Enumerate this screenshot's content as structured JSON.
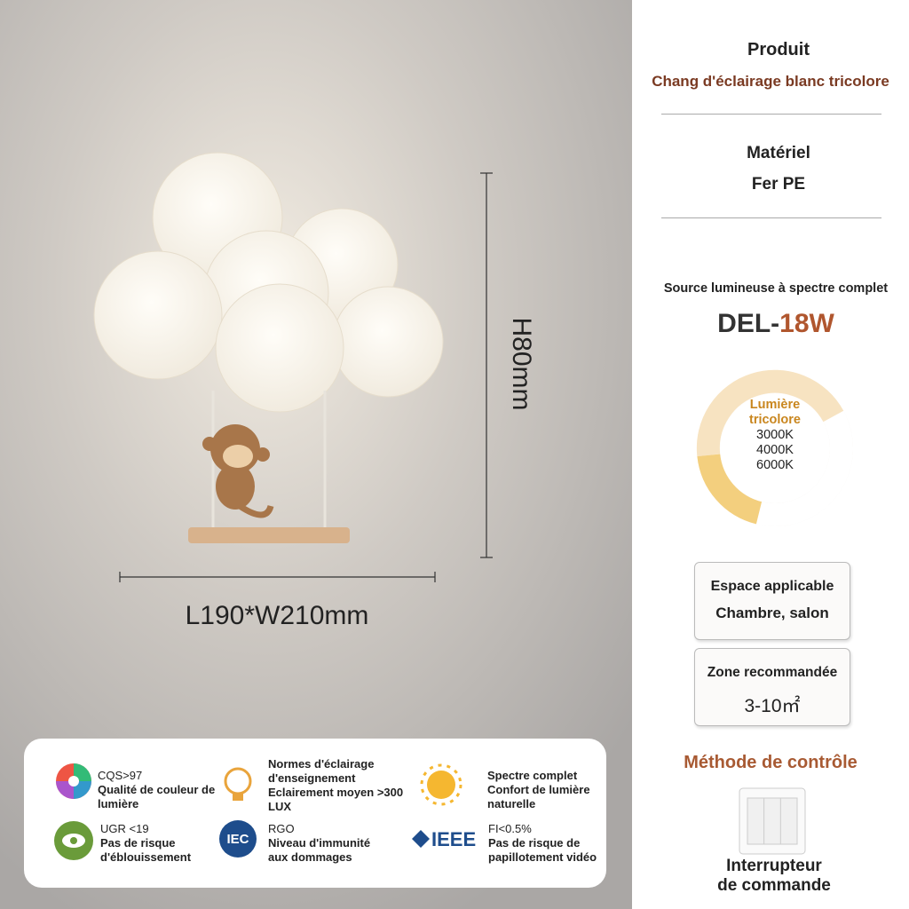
{
  "dimensions": {
    "height": "H80mm",
    "width": "L190*W210mm"
  },
  "product": {
    "label": "Produit",
    "value": "Chang d'éclairage blanc tricolore"
  },
  "material": {
    "label": "Matériel",
    "value": "Fer PE"
  },
  "light_source": {
    "label": "Source lumineuse à spectre complet",
    "type": "DEL-",
    "power": "18W"
  },
  "color_temperature": {
    "title_lines": [
      "Lumière",
      "tricolore"
    ],
    "values": [
      "3000K",
      "4000K",
      "6000K"
    ]
  },
  "space": {
    "label": "Espace applicable",
    "value": "Chambre, salon"
  },
  "area": {
    "label": "Zone recommandée",
    "value": "3-10㎡"
  },
  "control": {
    "title": "Méthode de contrôle",
    "lines": [
      "Interrupteur",
      "de commande"
    ]
  },
  "features": [
    {
      "lines": [
        "CQS>97",
        "Qualité de couleur de",
        "lumière"
      ]
    },
    {
      "lines": [
        "Normes d'éclairage",
        "d'enseignement",
        "Eclairement moyen >300",
        "LUX"
      ]
    },
    {
      "lines": [
        "Spectre complet",
        "Confort de lumière",
        "naturelle"
      ]
    },
    {
      "lines": [
        "UGR <19",
        "Pas de risque",
        "d'éblouissement"
      ],
      "icon_text": null
    },
    {
      "lines": [
        "RGO",
        "Niveau d'immunité",
        "aux dommages"
      ],
      "icon_text": "IEC"
    },
    {
      "lines": [
        "FI<0.5%",
        "Pas de risque de",
        "papillotement vidéo"
      ],
      "icon_text": "IEEE"
    }
  ]
}
